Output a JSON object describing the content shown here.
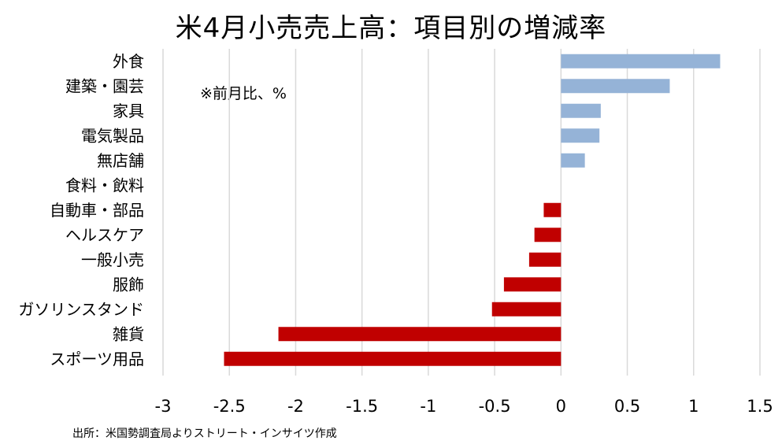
{
  "title": "米4月小売売上高：項目別の増減率",
  "note": "※前月比、%",
  "source": "出所：米国勢調査局よりストリート・インサイツ作成",
  "colors": {
    "positive": "#95B3D7",
    "negative": "#C00000",
    "grid": "#D9D9D9"
  },
  "chart_data": {
    "type": "bar",
    "orientation": "horizontal",
    "title": "米4月小売売上高：項目別の増減率",
    "categories": [
      "外食",
      "建築・園芸",
      "家具",
      "電気製品",
      "無店舗",
      "食料・飲料",
      "自動車・部品",
      "ヘルスケア",
      "一般小売",
      "服飾",
      "ガソリンスタンド",
      "雑貨",
      "スポーツ用品"
    ],
    "values": [
      1.2,
      0.82,
      0.3,
      0.29,
      0.18,
      0.0,
      -0.13,
      -0.2,
      -0.24,
      -0.43,
      -0.52,
      -2.13,
      -2.54
    ],
    "xlim": [
      -3,
      1.5
    ],
    "xticks": [
      -3,
      -2.5,
      -2,
      -1.5,
      -1,
      -0.5,
      0,
      0.5,
      1,
      1.5
    ],
    "xtick_labels": [
      "-3",
      "-2.5",
      "-2",
      "-1.5",
      "-1",
      "-0.5",
      "0",
      "0.5",
      "1",
      "1.5"
    ],
    "grid": true,
    "legend": "none"
  }
}
